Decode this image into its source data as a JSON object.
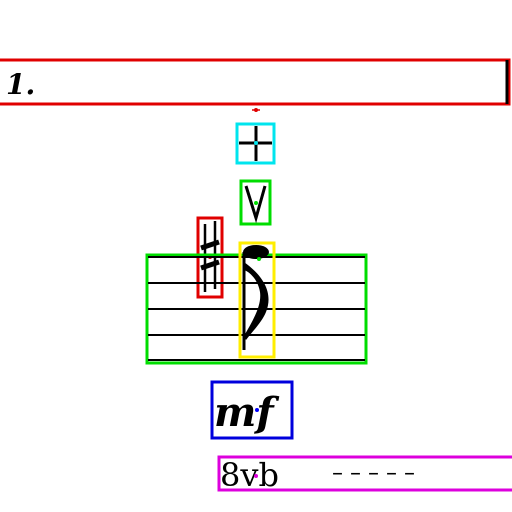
{
  "volta": {
    "label": "1."
  },
  "dynamic": {
    "text": "mf"
  },
  "ottava": {
    "text": "8vb",
    "dashes": "– – – – –"
  },
  "colors": {
    "red": "#e00000",
    "cyan": "#00e5ee",
    "green": "#00dd00",
    "yellow": "#ffee00",
    "blue": "#0000dd",
    "magenta": "#dd00dd",
    "ink": "#000000",
    "marker_dot": "#0000ff"
  },
  "symbols": {
    "fermata_cross": "cross-icon",
    "bow_mark": "up-bow-icon",
    "accidental": "sharp-icon",
    "note": "eighth-note-icon"
  }
}
